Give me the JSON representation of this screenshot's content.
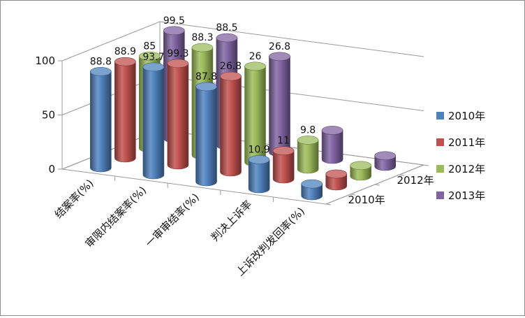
{
  "chart_data": {
    "type": "bar",
    "style": "3d-cylinder",
    "categories": [
      "结案率(%)",
      "审限内结案率(%)",
      "一审审结率(%)",
      "判决上诉率",
      "上诉改判发回率(%)"
    ],
    "series": [
      {
        "name": "2010年",
        "values": [
          88.8,
          99.5,
          87.8,
          26.8,
          10.9
        ],
        "color": "#4f81bd"
      },
      {
        "name": "2011年",
        "values": [
          88.9,
          93.7,
          88.3,
          26.0,
          11.0
        ],
        "color": "#c0504d"
      },
      {
        "name": "2012年",
        "values": [
          85.0,
          99.3,
          88.5,
          26.8,
          9.8
        ],
        "color": "#9bbb59"
      },
      {
        "name": "2013年",
        "values": [
          99.5,
          99.3,
          88.5,
          26.8,
          9.8
        ],
        "color": "#8064a2"
      }
    ],
    "data_labels": [
      "88.8",
      "88.9",
      "85",
      "99.5",
      "93.7",
      "99.3",
      "88.3",
      "88.5",
      "87.8",
      "26.8",
      "26",
      "26.8",
      "10.9",
      "11",
      "9.8"
    ],
    "y_ticks": [
      "0",
      "50",
      "100"
    ],
    "depth_ticks": [
      "2010年",
      "2012年"
    ],
    "ylim": [
      0,
      100
    ],
    "legend_position": "right",
    "grid": true
  }
}
